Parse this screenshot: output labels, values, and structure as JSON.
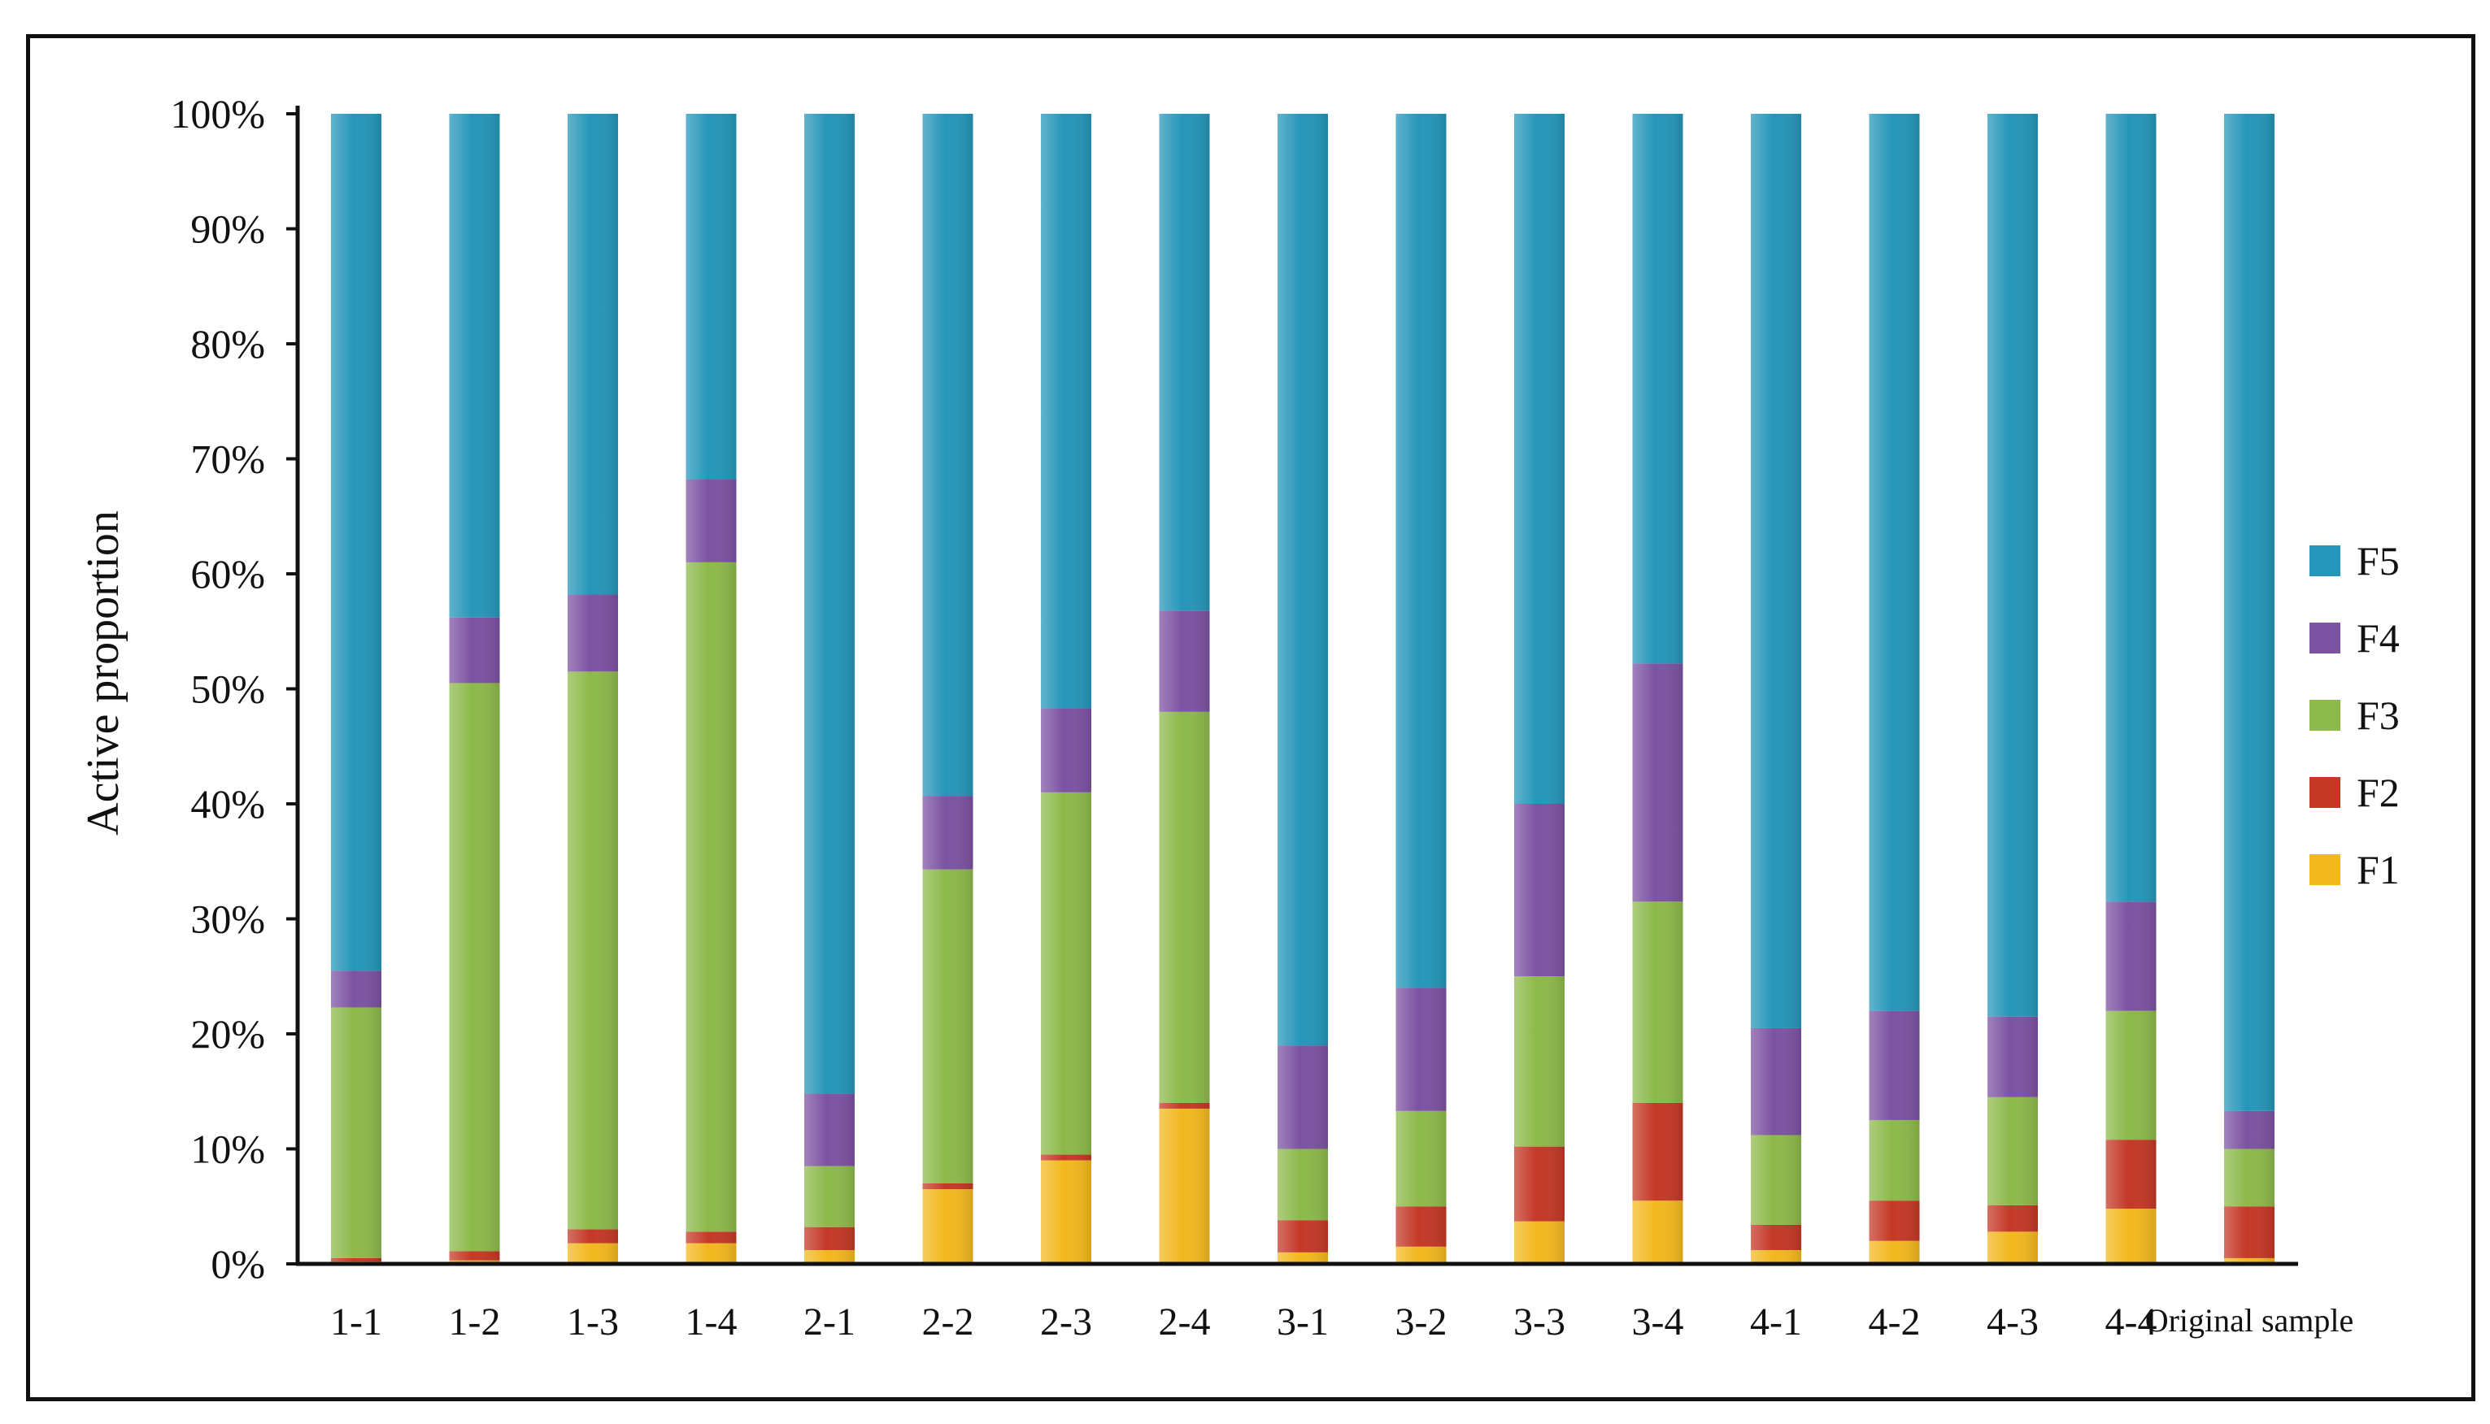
{
  "chart_data": {
    "type": "bar",
    "stacked": true,
    "title": "",
    "xlabel": "",
    "ylabel": "Active proportion",
    "ylim": [
      0,
      100
    ],
    "yticks": [
      "0%",
      "10%",
      "20%",
      "30%",
      "40%",
      "50%",
      "60%",
      "70%",
      "80%",
      "90%",
      "100%"
    ],
    "grid": false,
    "legend_position": "right",
    "categories": [
      "1-1",
      "1-2",
      "1-3",
      "1-4",
      "2-1",
      "2-2",
      "2-3",
      "2-4",
      "3-1",
      "3-2",
      "3-3",
      "3-4",
      "4-1",
      "4-2",
      "4-3",
      "4-4",
      "Original sample"
    ],
    "series": [
      {
        "name": "F1",
        "color": "#f2b81e",
        "values": [
          0.2,
          0.3,
          1.8,
          1.8,
          1.2,
          6.5,
          9.0,
          13.5,
          1.0,
          1.5,
          3.7,
          5.5,
          1.2,
          2.0,
          2.8,
          4.8,
          0.5
        ]
      },
      {
        "name": "F2",
        "color": "#c43826",
        "values": [
          0.3,
          0.8,
          1.2,
          1.0,
          2.0,
          0.5,
          0.5,
          0.5,
          2.8,
          3.5,
          6.5,
          8.5,
          2.2,
          3.5,
          2.3,
          6.0,
          4.5
        ]
      },
      {
        "name": "F3",
        "color": "#8db94a",
        "values": [
          21.8,
          49.4,
          48.5,
          58.2,
          5.3,
          27.3,
          31.5,
          34.0,
          6.2,
          8.3,
          14.8,
          17.5,
          7.8,
          7.0,
          9.4,
          11.2,
          5.0
        ]
      },
      {
        "name": "F4",
        "color": "#7c52a2",
        "values": [
          3.2,
          5.7,
          6.7,
          7.2,
          6.3,
          6.4,
          7.3,
          8.8,
          9.0,
          10.7,
          15.0,
          20.7,
          9.3,
          9.5,
          7.0,
          9.5,
          3.3
        ]
      },
      {
        "name": "F5",
        "color": "#2596b9",
        "values": [
          74.5,
          43.8,
          41.8,
          31.8,
          85.2,
          59.3,
          51.7,
          43.2,
          81.0,
          76.0,
          60.0,
          47.8,
          79.5,
          78.0,
          78.5,
          68.5,
          86.7
        ]
      }
    ]
  }
}
